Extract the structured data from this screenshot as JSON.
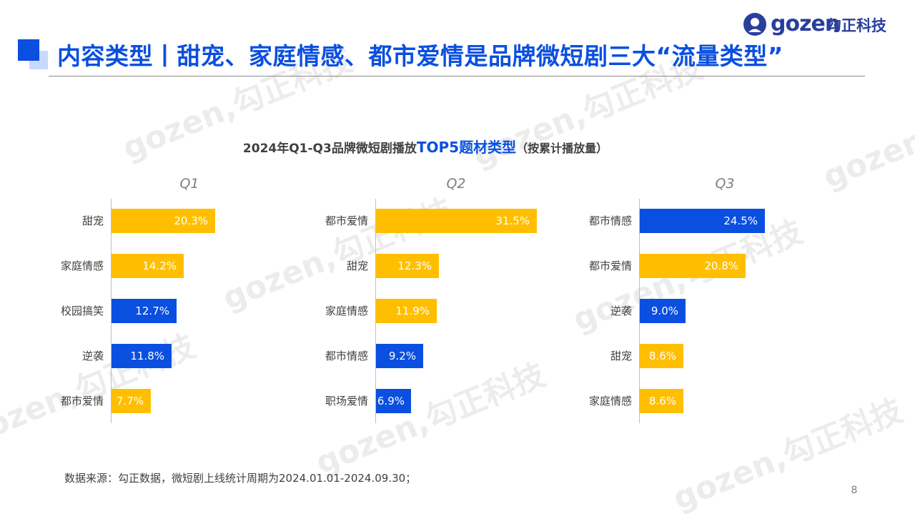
{
  "header": {
    "title": "内容类型丨甜宠、家庭情感、都市爱情是品牌微短剧三大“流量类型”",
    "logo_word": "gozen",
    "logo_cn": "勾正科技",
    "watermark_text": "gozen,勾正科技"
  },
  "chart_title": {
    "prefix": "2024年Q1-Q3品牌微短剧播放",
    "highlight": "TOP5题材类型",
    "suffix": "（按累计播放量）"
  },
  "colors": {
    "yellow": "#ffbf00",
    "blue": "#0a4fe0",
    "title_blue": "#0a4fe0"
  },
  "chart_data": [
    {
      "type": "bar",
      "orientation": "horizontal",
      "title": "Q1",
      "categories": [
        "甜宠",
        "家庭情感",
        "校园搞笑",
        "逆袭",
        "都市爱情"
      ],
      "values": [
        20.3,
        14.2,
        12.7,
        11.8,
        7.7
      ],
      "labels": [
        "20.3%",
        "14.2%",
        "12.7%",
        "11.8%",
        "7.7%"
      ],
      "colors": [
        "yellow",
        "yellow",
        "blue",
        "blue",
        "yellow"
      ],
      "unit": "%"
    },
    {
      "type": "bar",
      "orientation": "horizontal",
      "title": "Q2",
      "categories": [
        "都市爱情",
        "甜宠",
        "家庭情感",
        "都市情感",
        "职场爱情"
      ],
      "values": [
        31.5,
        12.3,
        11.9,
        9.2,
        6.9
      ],
      "labels": [
        "31.5%",
        "12.3%",
        "11.9%",
        "9.2%",
        "6.9%"
      ],
      "colors": [
        "yellow",
        "yellow",
        "yellow",
        "blue",
        "blue"
      ],
      "unit": "%"
    },
    {
      "type": "bar",
      "orientation": "horizontal",
      "title": "Q3",
      "categories": [
        "都市情感",
        "都市爱情",
        "逆袭",
        "甜宠",
        "家庭情感"
      ],
      "values": [
        24.5,
        20.8,
        9.0,
        8.6,
        8.6
      ],
      "labels": [
        "24.5%",
        "20.8%",
        "9.0%",
        "8.6%",
        "8.6%"
      ],
      "colors": [
        "blue",
        "yellow",
        "blue",
        "yellow",
        "yellow"
      ],
      "unit": "%"
    }
  ],
  "footer": {
    "source": "数据来源：勾正数据，微短剧上线统计周期为2024.01.01-2024.09.30；",
    "page_number": "8"
  }
}
